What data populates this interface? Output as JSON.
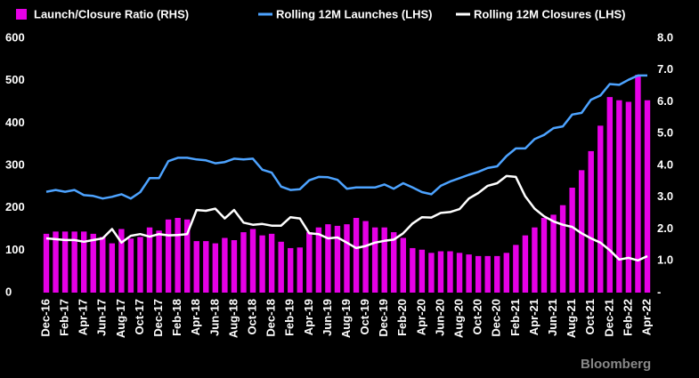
{
  "chart_data": {
    "type": "bar",
    "categories": [
      "Dec-16",
      null,
      "Feb-17",
      null,
      "Apr-17",
      null,
      "Jun-17",
      null,
      "Aug-17",
      null,
      "Oct-17",
      null,
      "Dec-17",
      null,
      "Feb-18",
      null,
      "Apr-18",
      null,
      "Jun-18",
      null,
      "Aug-18",
      null,
      "Oct-18",
      null,
      "Dec-18",
      null,
      "Feb-19",
      null,
      "Apr-19",
      null,
      "Jun-19",
      null,
      "Aug-19",
      null,
      "Oct-19",
      null,
      "Dec-19",
      null,
      "Feb-20",
      null,
      "Apr-20",
      null,
      "Jun-20",
      null,
      "Aug-20",
      null,
      "Oct-20",
      null,
      "Dec-20",
      null,
      "Feb-21",
      null,
      "Apr-21",
      null,
      "Jun-21",
      null,
      "Aug-21",
      null,
      "Oct-21",
      null,
      "Dec-21",
      null,
      "Feb-22",
      null,
      "Apr-22"
    ],
    "series": [
      {
        "name": "Launch/Closure Ratio (RHS)",
        "type": "bar",
        "axis": "y2",
        "color": "#e600e6",
        "values": [
          1.85,
          1.92,
          1.92,
          1.92,
          1.92,
          1.85,
          1.75,
          1.55,
          2.0,
          1.7,
          1.75,
          2.05,
          1.95,
          2.3,
          2.35,
          2.3,
          1.62,
          1.62,
          1.55,
          1.72,
          1.65,
          1.9,
          2.0,
          1.8,
          1.85,
          1.6,
          1.4,
          1.42,
          1.9,
          2.05,
          2.15,
          2.1,
          2.15,
          2.35,
          2.25,
          2.05,
          2.05,
          1.9,
          1.72,
          1.4,
          1.35,
          1.25,
          1.3,
          1.3,
          1.25,
          1.2,
          1.15,
          1.15,
          1.15,
          1.25,
          1.5,
          1.8,
          2.05,
          2.35,
          2.45,
          2.75,
          3.3,
          3.85,
          4.45,
          5.25,
          6.15,
          6.05,
          6.0,
          6.85,
          6.05
        ]
      },
      {
        "name": "Rolling 12M Launches (LHS)",
        "type": "line",
        "color": "#4da3ff",
        "values": [
          238,
          242,
          238,
          242,
          230,
          228,
          222,
          226,
          232,
          222,
          237,
          270,
          270,
          310,
          318,
          318,
          314,
          312,
          305,
          308,
          316,
          314,
          316,
          290,
          283,
          250,
          242,
          244,
          265,
          273,
          272,
          266,
          245,
          248,
          248,
          248,
          255,
          245,
          258,
          248,
          237,
          232,
          252,
          262,
          270,
          278,
          285,
          294,
          298,
          322,
          340,
          340,
          362,
          372,
          388,
          392,
          420,
          424,
          455,
          465,
          492,
          490,
          502,
          512,
          512
        ]
      },
      {
        "name": "Rolling 12M Closures (LHS)",
        "type": "line",
        "color": "#ffffff",
        "values": [
          128,
          126,
          124,
          124,
          120,
          124,
          128,
          150,
          118,
          134,
          138,
          132,
          138,
          135,
          136,
          138,
          195,
          193,
          198,
          175,
          195,
          165,
          160,
          162,
          158,
          158,
          178,
          175,
          140,
          138,
          128,
          130,
          118,
          105,
          110,
          118,
          122,
          125,
          140,
          163,
          178,
          177,
          188,
          190,
          197,
          222,
          235,
          252,
          258,
          275,
          273,
          227,
          198,
          180,
          168,
          160,
          155,
          140,
          128,
          118,
          100,
          78,
          82,
          76,
          86
        ]
      }
    ],
    "ylim": [
      0,
      600
    ],
    "yticks": [
      0,
      100,
      200,
      300,
      400,
      500,
      600
    ],
    "y2lim": [
      0,
      8
    ],
    "y2ticks": [
      {
        "value": 0,
        "label": "-"
      },
      {
        "value": 1,
        "label": "1.0"
      },
      {
        "value": 2,
        "label": "2.0"
      },
      {
        "value": 3,
        "label": "3.0"
      },
      {
        "value": 4,
        "label": "4.0"
      },
      {
        "value": 5,
        "label": "5.0"
      },
      {
        "value": 6,
        "label": "6.0"
      },
      {
        "value": 7,
        "label": "7.0"
      },
      {
        "value": 8,
        "label": "8.0"
      }
    ],
    "legend": "top",
    "source": "Bloomberg"
  }
}
